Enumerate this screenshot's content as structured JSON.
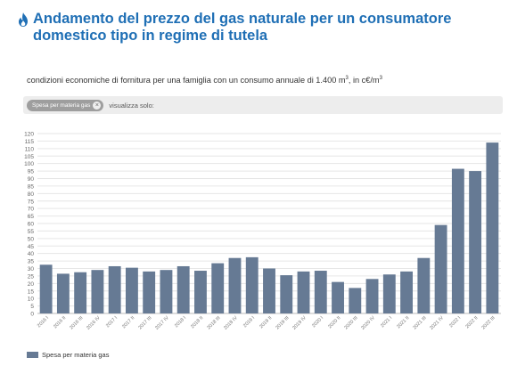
{
  "header": {
    "icon": "flame-icon",
    "title": "Andamento del prezzo del gas naturale per un consumatore domestico tipo in regime di tutela"
  },
  "subtitle": {
    "text": "condizioni economiche di fornitura per una famiglia con un consumo annuale di 1.400 m",
    "sup1": "3",
    "mid": ", in c€/m",
    "sup2": "3"
  },
  "filter": {
    "chip_label": "Spesa per materia gas",
    "hint": "visualizza solo:"
  },
  "colors": {
    "bar": "#667a94",
    "title": "#1f6fb5"
  },
  "chart_data": {
    "type": "bar",
    "categories": [
      "2016 I",
      "2016 II",
      "2016 III",
      "2016 IV",
      "2017 I",
      "2017 II",
      "2017 III",
      "2017 IV",
      "2018 I",
      "2018 II",
      "2018 III",
      "2018 IV",
      "2019 I",
      "2019 II",
      "2019 III",
      "2019 IV",
      "2020 I",
      "2020 II",
      "2020 III",
      "2020 IV",
      "2021 I",
      "2021 II",
      "2021 III",
      "2021 IV",
      "2022 I",
      "2022 II",
      "2022 III"
    ],
    "series": [
      {
        "name": "Spesa per materia gas",
        "values": [
          32.5,
          26.5,
          27.5,
          29,
          31.5,
          30.5,
          28,
          29,
          31.5,
          28.5,
          33.5,
          37,
          37.5,
          30,
          25.5,
          28,
          28.5,
          21,
          17,
          23,
          26,
          28,
          37,
          59,
          96.5,
          95,
          114
        ]
      }
    ],
    "ylim": [
      0,
      120
    ],
    "yticks": [
      0,
      5,
      10,
      15,
      20,
      25,
      30,
      35,
      40,
      45,
      50,
      55,
      60,
      65,
      70,
      75,
      80,
      85,
      90,
      95,
      100,
      105,
      110,
      115,
      120
    ],
    "grid": true,
    "legend_position": "bottom-left"
  }
}
